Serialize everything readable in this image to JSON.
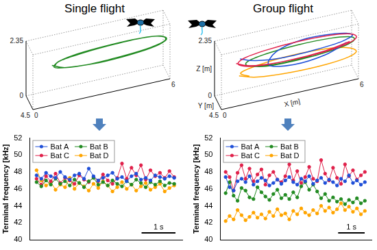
{
  "chart_data": [
    {
      "type": "line3d",
      "title": "Single flight",
      "xlim": [
        0,
        6
      ],
      "ylim": [
        0,
        4.5
      ],
      "zlim": [
        0,
        2.35
      ],
      "xticks": [
        0,
        6
      ],
      "yticks": [
        4.5
      ],
      "zticks": [
        0,
        2.35
      ],
      "series": [
        {
          "color": "#228b22",
          "x": [
            1.0,
            1.5,
            2.5,
            4.0,
            5.2,
            5.9,
            5.8,
            5.0,
            3.8,
            2.5,
            1.5,
            1.1,
            1.2,
            2.0,
            3.2,
            4.6,
            5.6,
            6.0,
            5.6,
            4.6,
            3.2,
            2.0,
            1.3,
            1.1
          ],
          "y": [
            2.0,
            3.2,
            3.8,
            3.9,
            3.6,
            2.8,
            1.6,
            0.9,
            0.6,
            0.7,
            1.1,
            1.9,
            2.8,
            3.6,
            4.0,
            3.9,
            3.3,
            2.3,
            1.3,
            0.8,
            0.6,
            0.8,
            1.4,
            2.2
          ],
          "z": [
            1.35,
            1.3,
            1.3,
            1.35,
            1.4,
            1.45,
            1.5,
            1.5,
            1.45,
            1.4,
            1.35,
            1.3,
            1.3,
            1.3,
            1.3,
            1.35,
            1.4,
            1.45,
            1.5,
            1.5,
            1.45,
            1.4,
            1.35,
            1.3
          ]
        }
      ]
    },
    {
      "type": "line3d",
      "title": "Group flight",
      "xlim": [
        0,
        6
      ],
      "ylim": [
        0,
        4.5
      ],
      "zlim": [
        0,
        2.35
      ],
      "xticks": [
        0,
        6
      ],
      "yticks": [
        4.5
      ],
      "zticks": [
        0,
        2.35
      ],
      "xlabel": "X [m]",
      "ylabel": "Y [m]",
      "zlabel": "Z [m]",
      "series": [
        {
          "color": "#ffa500",
          "x": [
            0.9,
            1.6,
            3.0,
            4.6,
            5.7,
            6.0,
            5.5,
            4.4,
            3.0,
            1.8,
            1.0,
            1.3
          ],
          "y": [
            2.6,
            3.8,
            4.3,
            4.3,
            3.8,
            2.8,
            1.8,
            1.2,
            1.1,
            1.4,
            2.2,
            3.4
          ],
          "z": [
            1.0,
            0.95,
            0.9,
            0.9,
            0.95,
            1.0,
            1.1,
            1.15,
            1.15,
            1.1,
            1.05,
            1.0
          ]
        },
        {
          "color": "#228b22",
          "x": [
            1.2,
            2.0,
            3.4,
            4.8,
            5.8,
            5.9,
            5.0,
            3.6,
            2.2,
            1.3,
            1.4,
            2.6,
            4.0
          ],
          "y": [
            2.5,
            3.6,
            3.9,
            3.7,
            2.9,
            1.7,
            1.0,
            0.8,
            1.0,
            1.8,
            2.9,
            3.7,
            3.8
          ],
          "z": [
            1.35,
            1.3,
            1.3,
            1.35,
            1.4,
            1.45,
            1.5,
            1.5,
            1.45,
            1.4,
            1.35,
            1.3,
            1.35
          ]
        },
        {
          "color": "#1f4fd8",
          "x": [
            1.0,
            1.6,
            2.8,
            4.2,
            5.4,
            5.9,
            5.2,
            3.8,
            2.6,
            2.2,
            3.2,
            4.6,
            5.6
          ],
          "y": [
            1.8,
            3.0,
            3.6,
            3.4,
            3.0,
            2.0,
            1.0,
            0.6,
            1.4,
            2.8,
            3.6,
            3.5,
            2.6
          ],
          "z": [
            1.6,
            1.55,
            1.5,
            1.5,
            1.55,
            1.6,
            1.65,
            1.65,
            1.5,
            1.2,
            1.1,
            1.2,
            1.4
          ]
        },
        {
          "color": "#e0204a",
          "x": [
            0.8,
            1.3,
            2.5,
            4.0,
            5.3,
            6.0,
            5.9,
            5.0,
            3.6,
            2.2,
            1.2,
            0.9,
            1.6,
            3.0,
            4.6,
            5.7
          ],
          "y": [
            2.2,
            3.4,
            4.0,
            4.1,
            3.7,
            2.7,
            1.5,
            0.8,
            0.5,
            0.6,
            1.2,
            2.4,
            3.6,
            4.1,
            4.0,
            3.2
          ],
          "z": [
            1.5,
            1.45,
            1.4,
            1.4,
            1.45,
            1.5,
            1.55,
            1.6,
            1.6,
            1.55,
            1.5,
            1.45,
            1.4,
            1.4,
            1.45,
            1.5
          ]
        }
      ]
    },
    {
      "type": "line",
      "marker": "circle",
      "line_style": "solid",
      "ylabel": "Terminal frequency [kHz]",
      "x": [
        0,
        0.14,
        0.28,
        0.42,
        0.56,
        0.7,
        0.84,
        0.98,
        1.12,
        1.26,
        1.4,
        1.54,
        1.68,
        1.82,
        1.96,
        2.1,
        2.24,
        2.38,
        2.52,
        2.66,
        2.8,
        2.94,
        3.08,
        3.22,
        3.36,
        3.5,
        3.64,
        3.78,
        3.92,
        4.06
      ],
      "xlim": [
        -0.2,
        4.3
      ],
      "ylim": [
        40,
        52
      ],
      "yticks": [
        40,
        42,
        44,
        46,
        48,
        50,
        52
      ],
      "grid": false,
      "legend": "upper left",
      "tick_labels": "y",
      "scale_bar": {
        "length": 1,
        "label": "1 s"
      },
      "series": [
        {
          "name": "Bat A",
          "color": "#1f4fd8",
          "values": [
            47.6,
            47.2,
            47.9,
            47.5,
            47.3,
            48.0,
            47.4,
            47.1,
            47.6,
            47.8,
            47.2,
            48.4,
            47.5,
            47.0,
            47.3,
            47.6,
            47.9,
            47.2,
            47.4,
            46.9,
            47.5,
            47.8,
            47.1,
            47.3,
            47.0,
            47.6,
            47.4,
            47.2,
            47.5,
            47.3
          ]
        },
        {
          "name": "Bat B",
          "color": "#228b22",
          "values": [
            46.8,
            46.3,
            47.0,
            46.5,
            47.2,
            46.6,
            46.9,
            46.4,
            47.1,
            46.7,
            46.2,
            46.9,
            47.3,
            46.5,
            46.8,
            46.4,
            47.0,
            46.6,
            46.3,
            46.9,
            46.5,
            47.1,
            46.7,
            46.2,
            46.8,
            46.5,
            46.9,
            46.4,
            46.7,
            46.6
          ]
        },
        {
          "name": "Bat C",
          "color": "#e0204a",
          "values": [
            47.2,
            46.5,
            47.5,
            46.9,
            47.8,
            46.7,
            47.3,
            47.0,
            46.6,
            47.6,
            47.1,
            46.8,
            47.4,
            46.9,
            47.7,
            47.0,
            46.6,
            47.3,
            49.0,
            47.2,
            48.5,
            47.6,
            48.8,
            47.1,
            48.2,
            47.5,
            47.9,
            47.3,
            48.1,
            47.4
          ]
        },
        {
          "name": "Bat D",
          "color": "#ffa500",
          "values": [
            48.2,
            47.0,
            46.4,
            46.8,
            45.9,
            46.5,
            46.2,
            47.3,
            46.0,
            46.7,
            46.3,
            45.8,
            46.6,
            46.1,
            46.9,
            46.4,
            45.7,
            46.2,
            46.8,
            46.0,
            46.5,
            45.8,
            46.3,
            46.7,
            45.9,
            46.2,
            46.6,
            45.7,
            46.1,
            46.4
          ]
        }
      ]
    },
    {
      "type": "line",
      "marker": "circle",
      "line_style": "solid",
      "ylabel": "Terminal frequency [kHz]",
      "x": [
        0,
        0.15,
        0.3,
        0.45,
        0.6,
        0.75,
        0.9,
        1.05,
        1.2,
        1.35,
        1.5,
        1.65,
        1.8,
        1.95,
        2.1,
        2.25,
        2.4,
        2.55,
        2.7,
        2.85,
        3.0,
        3.15,
        3.3,
        3.45,
        3.6,
        3.75,
        3.9,
        4.05,
        4.2,
        4.35,
        4.5,
        4.65,
        4.8,
        4.95,
        5.1,
        5.25
      ],
      "xlim": [
        -0.2,
        5.5
      ],
      "ylim": [
        40,
        52
      ],
      "yticks": [
        40,
        42,
        44,
        46,
        48,
        50,
        52
      ],
      "grid": false,
      "legend": "upper left",
      "tick_labels": "y",
      "scale_bar": {
        "length": 1,
        "label": "1 s"
      },
      "series": [
        {
          "name": "Bat A",
          "color": "#1f4fd8",
          "values": [
            47.4,
            46.2,
            45.8,
            46.9,
            47.2,
            46.8,
            47.5,
            46.5,
            46.9,
            47.3,
            47.0,
            46.4,
            46.7,
            47.1,
            46.6,
            47.0,
            47.4,
            46.8,
            46.5,
            47.2,
            46.9,
            47.5,
            46.6,
            47.0,
            47.3,
            46.7,
            47.1,
            46.8,
            46.4,
            47.2,
            46.9,
            47.6,
            46.7,
            47.0,
            46.5,
            46.8
          ]
        },
        {
          "name": "Bat B",
          "color": "#228b22",
          "values": [
            45.5,
            46.8,
            45.2,
            44.6,
            46.1,
            45.8,
            45.0,
            44.8,
            46.2,
            45.6,
            45.1,
            44.7,
            45.4,
            45.9,
            44.9,
            45.3,
            44.8,
            45.6,
            45.0,
            46.3,
            46.8,
            45.9,
            46.5,
            45.7,
            44.9,
            45.4,
            44.6,
            45.0,
            44.5,
            44.8,
            44.2,
            44.7,
            44.4,
            44.9,
            44.3,
            44.6
          ]
        },
        {
          "name": "Bat C",
          "color": "#e0204a",
          "values": [
            48.0,
            47.4,
            45.8,
            47.9,
            48.8,
            47.2,
            48.4,
            46.9,
            47.7,
            48.3,
            46.5,
            47.6,
            48.0,
            47.1,
            46.8,
            47.5,
            48.9,
            47.0,
            48.1,
            46.7,
            47.4,
            48.6,
            47.2,
            46.9,
            49.4,
            47.8,
            47.0,
            48.5,
            47.3,
            46.6,
            48.9,
            47.5,
            48.2,
            47.1,
            47.6,
            48.0
          ]
        },
        {
          "name": "Bat D",
          "color": "#ffa500",
          "values": [
            42.2,
            42.8,
            42.4,
            43.5,
            42.9,
            42.3,
            42.7,
            43.2,
            42.6,
            43.0,
            42.5,
            43.3,
            42.8,
            43.6,
            42.9,
            43.1,
            42.4,
            43.4,
            43.0,
            43.7,
            43.2,
            42.9,
            43.5,
            43.1,
            44.0,
            43.4,
            43.8,
            43.2,
            43.6,
            44.3,
            43.5,
            43.9,
            43.3,
            43.7,
            43.0,
            43.4
          ]
        }
      ]
    }
  ]
}
